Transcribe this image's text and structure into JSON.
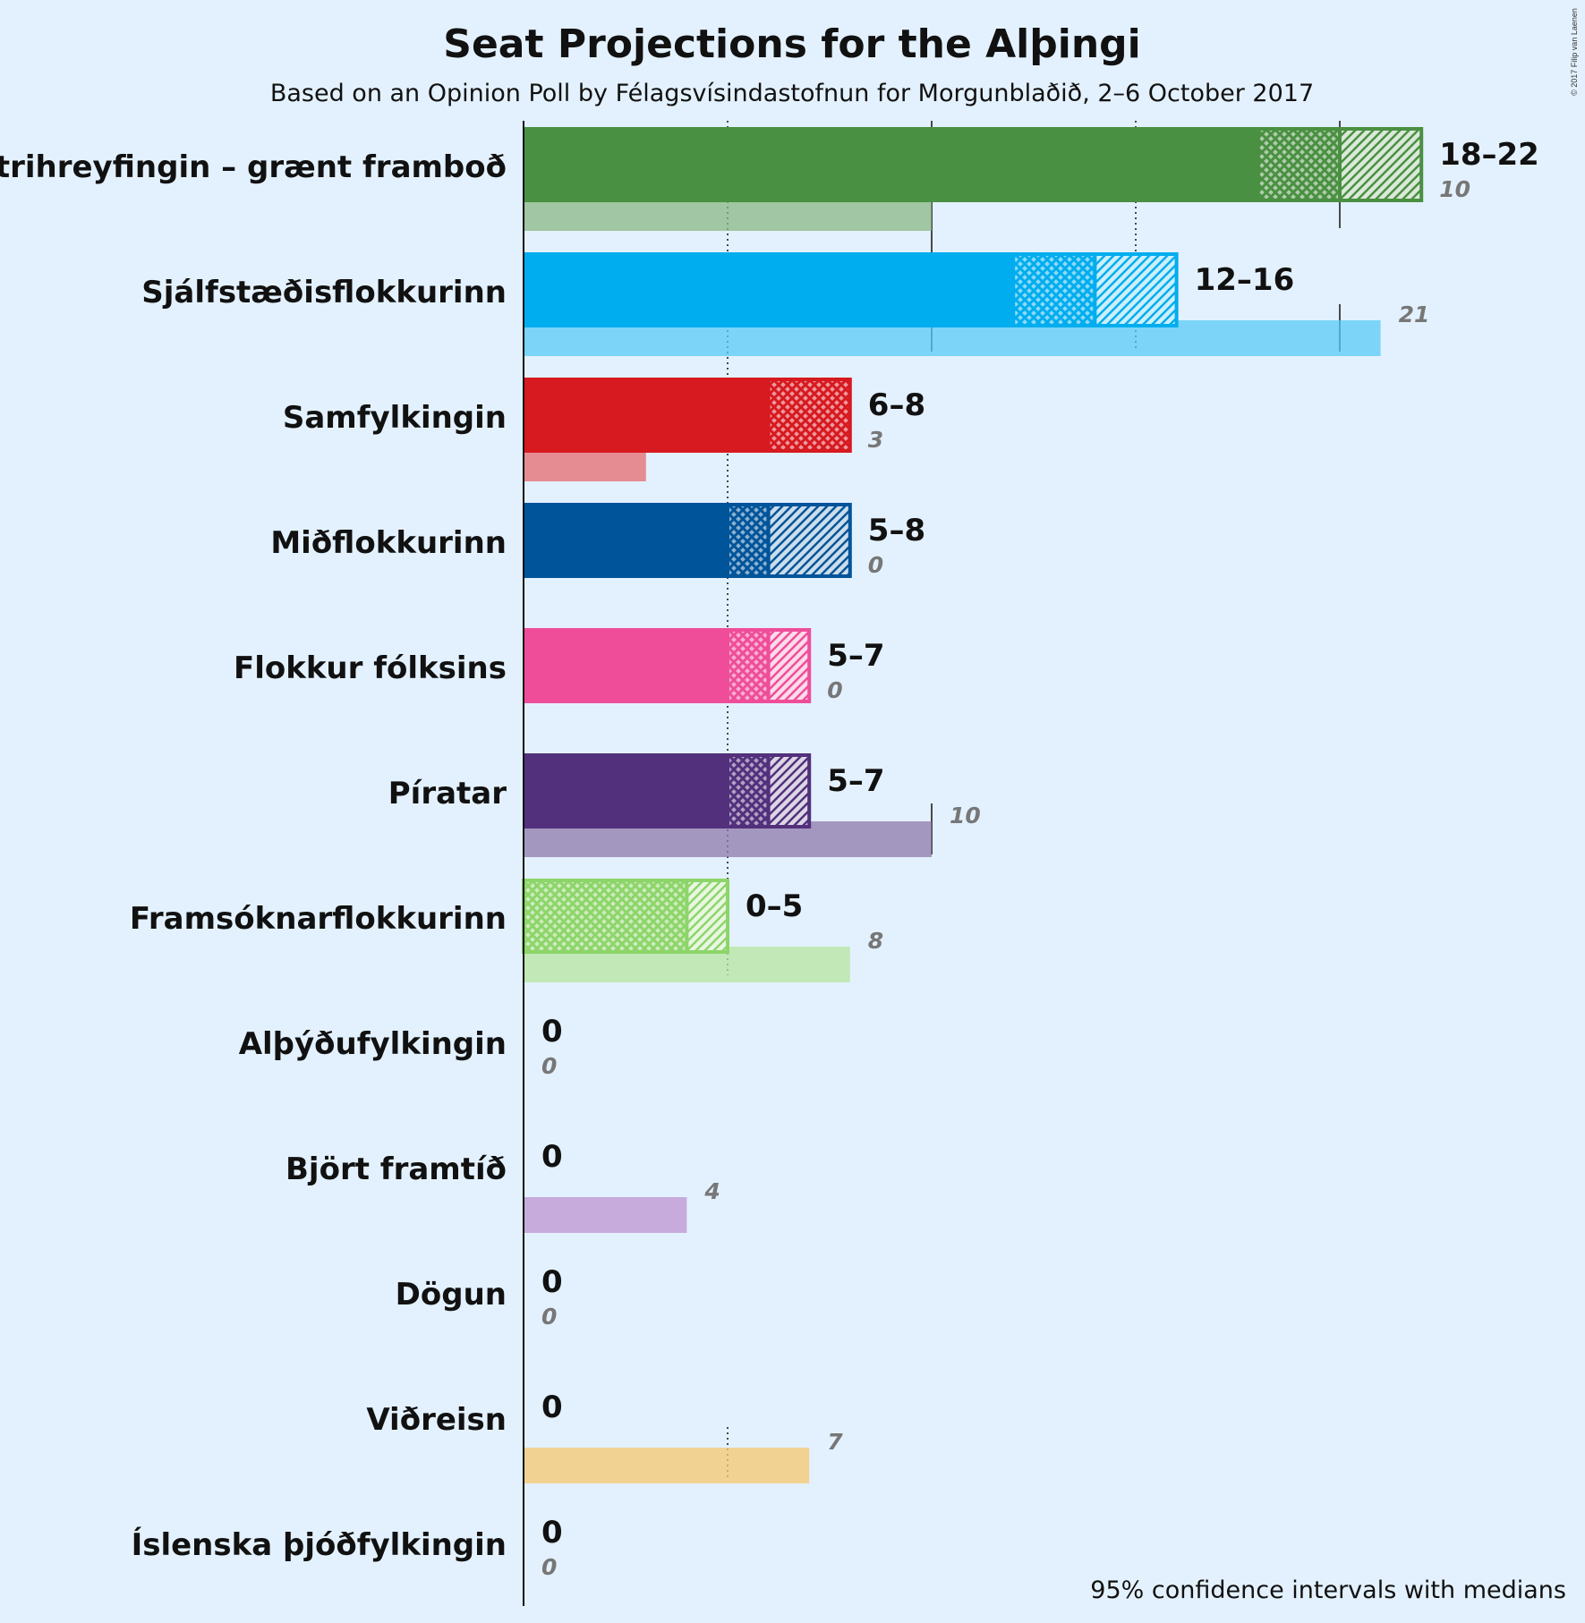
{
  "chart_data": {
    "type": "bar",
    "title": "Seat Projections for the Alþingi",
    "subtitle": "Based on an Opinion Poll by Félagsvísindastofnun for Morgunblaðið, 2–6 October 2017",
    "copyright": "© 2017 Filip van Laenen",
    "footnote": "95% confidence intervals with medians",
    "xlim": [
      0,
      22
    ],
    "gridlines_dotted": [
      5,
      15
    ],
    "gridlines_solid": [
      10,
      20
    ],
    "parties": [
      {
        "name": "Vinstrihreyfingin – grænt framboð",
        "color": "#4a9042",
        "low": 18,
        "median": 20,
        "high": 22,
        "range_label": "18–22",
        "previous": 10,
        "previous_label": "10"
      },
      {
        "name": "Sjálfstæðisflokkurinn",
        "color": "#00adef",
        "low": 12,
        "median": 14,
        "high": 16,
        "range_label": "12–16",
        "previous": 21,
        "previous_label": "21"
      },
      {
        "name": "Samfylkingin",
        "color": "#d71920",
        "low": 6,
        "median": 8,
        "high": 8,
        "range_label": "6–8",
        "previous": 3,
        "previous_label": "3"
      },
      {
        "name": "Miðflokkurinn",
        "color": "#00549a",
        "low": 5,
        "median": 6,
        "high": 8,
        "range_label": "5–8",
        "previous": 0,
        "previous_label": "0"
      },
      {
        "name": "Flokkur fólksins",
        "color": "#ef4d9a",
        "low": 5,
        "median": 6,
        "high": 7,
        "range_label": "5–7",
        "previous": 0,
        "previous_label": "0"
      },
      {
        "name": "Píratar",
        "color": "#52307c",
        "low": 5,
        "median": 6,
        "high": 7,
        "range_label": "5–7",
        "previous": 10,
        "previous_label": "10"
      },
      {
        "name": "Framsóknarflokkurinn",
        "color": "#8dd56a",
        "low": 0,
        "median": 4,
        "high": 5,
        "range_label": "0–5",
        "previous": 8,
        "previous_label": "8"
      },
      {
        "name": "Alþýðufylkingin",
        "color": "#c0392b",
        "low": 0,
        "median": 0,
        "high": 0,
        "range_label": "0",
        "previous": 0,
        "previous_label": "0"
      },
      {
        "name": "Björt framtíð",
        "color": "#9b59b6",
        "low": 0,
        "median": 0,
        "high": 0,
        "range_label": "0",
        "previous": 4,
        "previous_label": "4"
      },
      {
        "name": "Dögun",
        "color": "#e67e22",
        "low": 0,
        "median": 0,
        "high": 0,
        "range_label": "0",
        "previous": 0,
        "previous_label": "0"
      },
      {
        "name": "Viðreisn",
        "color": "#f2a922",
        "low": 0,
        "median": 0,
        "high": 0,
        "range_label": "0",
        "previous": 7,
        "previous_label": "7"
      },
      {
        "name": "Íslenska þjóðfylkingin",
        "color": "#34495e",
        "low": 0,
        "median": 0,
        "high": 0,
        "range_label": "0",
        "previous": 0,
        "previous_label": "0"
      }
    ]
  }
}
